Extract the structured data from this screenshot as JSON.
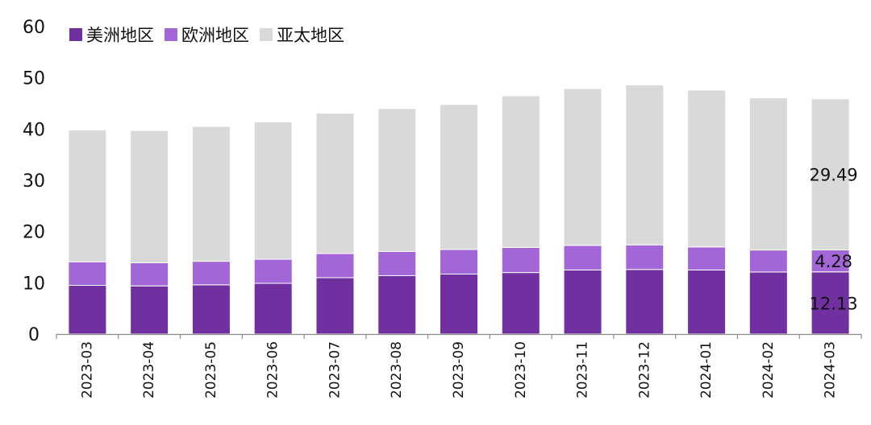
{
  "chart_data": {
    "type": "bar",
    "stacked": true,
    "categories": [
      "2023-03",
      "2023-04",
      "2023-05",
      "2023-06",
      "2023-07",
      "2023-08",
      "2023-09",
      "2023-10",
      "2023-11",
      "2023-12",
      "2024-01",
      "2024-02",
      "2024-03"
    ],
    "series": [
      {
        "name": "美洲地区",
        "color": "#7030a0",
        "values": [
          9.5,
          9.4,
          9.6,
          9.9,
          11.0,
          11.4,
          11.7,
          12.0,
          12.5,
          12.6,
          12.5,
          12.1,
          12.13
        ]
      },
      {
        "name": "欧洲地区",
        "color": "#a366d6",
        "values": [
          4.6,
          4.5,
          4.6,
          4.7,
          4.7,
          4.7,
          4.8,
          4.9,
          4.8,
          4.8,
          4.5,
          4.3,
          4.28
        ]
      },
      {
        "name": "亚太地区",
        "color": "#d9d9d9",
        "values": [
          25.7,
          25.8,
          26.3,
          26.8,
          27.4,
          27.9,
          28.3,
          29.6,
          30.6,
          31.2,
          30.6,
          29.7,
          29.49
        ]
      }
    ],
    "data_labels": [
      {
        "category": "2024-03",
        "series": "亚太地区",
        "text": "29.49"
      },
      {
        "category": "2024-03",
        "series": "欧洲地区",
        "text": "4.28"
      },
      {
        "category": "2024-03",
        "series": "美洲地区",
        "text": "12.13"
      }
    ],
    "ylim": [
      0,
      60
    ],
    "yticks": [
      0,
      10,
      20,
      30,
      40,
      50,
      60
    ],
    "title": "",
    "xlabel": "",
    "ylabel": "",
    "legend_position": "top-left",
    "grid": false
  }
}
